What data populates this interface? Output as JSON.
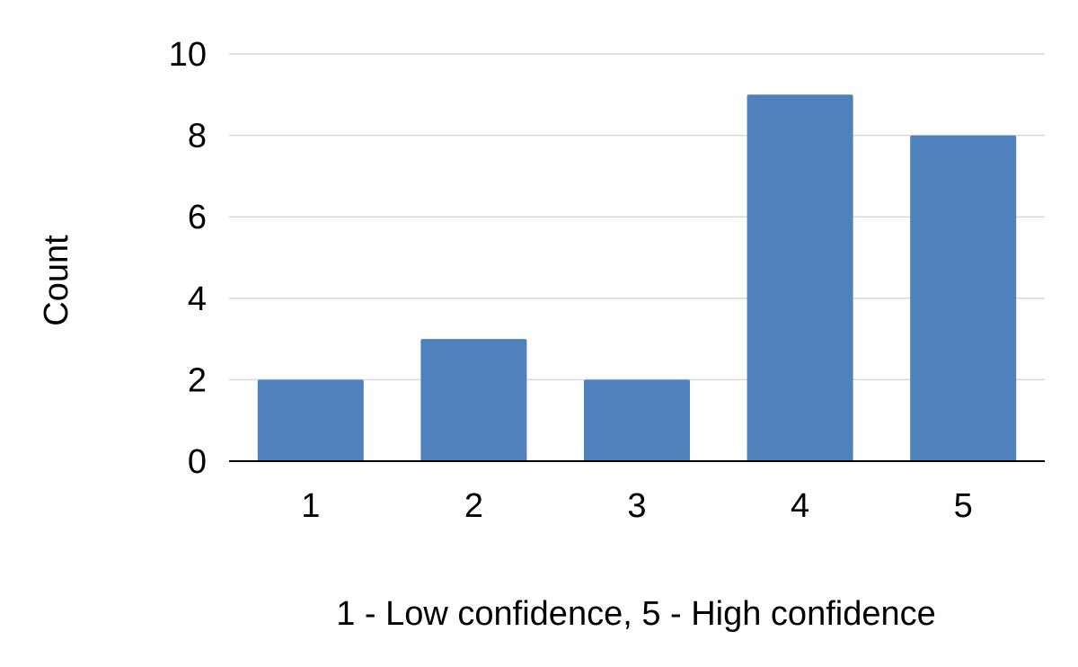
{
  "chart_data": {
    "type": "bar",
    "title": "",
    "xlabel": "1 - Low confidence, 5 - High confidence",
    "ylabel": "Count",
    "categories": [
      "1",
      "2",
      "3",
      "4",
      "5"
    ],
    "values": [
      2,
      3,
      2,
      9,
      8
    ],
    "ylim": [
      0,
      10
    ],
    "yticks": [
      "0",
      "2",
      "4",
      "6",
      "8",
      "10"
    ],
    "grid": true,
    "legend": "none",
    "colors": {
      "bar": "#4f81bd",
      "grid": "#d9d9d9",
      "axis": "#000000"
    }
  }
}
